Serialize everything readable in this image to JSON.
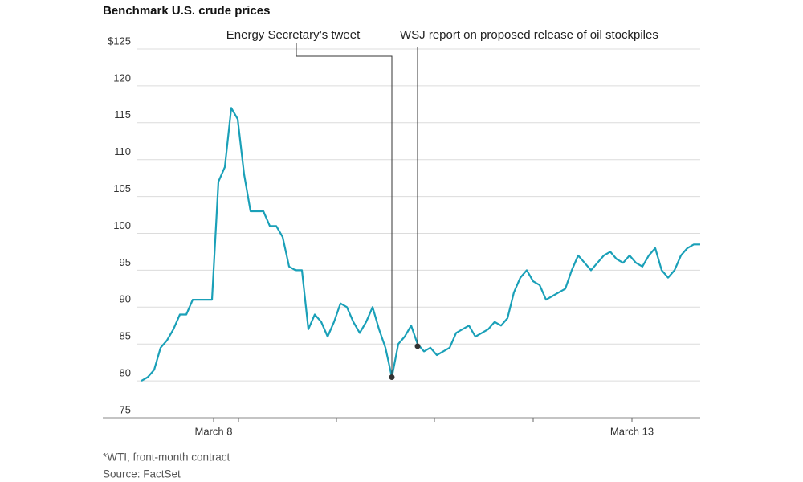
{
  "chart_data": {
    "type": "line",
    "title": "Benchmark U.S. crude prices",
    "x": [
      0,
      1,
      2,
      3,
      4,
      5,
      6,
      7,
      8,
      9,
      10,
      11,
      12,
      13,
      14,
      15,
      16,
      17,
      18,
      19,
      20,
      21,
      22,
      23,
      24,
      25,
      26,
      27,
      28,
      29,
      30,
      31,
      32,
      33,
      34,
      35,
      36,
      37,
      38,
      39,
      40,
      41,
      42,
      43,
      44,
      45,
      46,
      47,
      48,
      49,
      50,
      51,
      52,
      53,
      54,
      55,
      56,
      57,
      58,
      59,
      60,
      61,
      62,
      63,
      64,
      65,
      66,
      67,
      68,
      69,
      70,
      71,
      72,
      73,
      74,
      75,
      76,
      77,
      78,
      79,
      80,
      81,
      82,
      83,
      84,
      85,
      86,
      87
    ],
    "values": [
      80,
      80.5,
      81.5,
      84.5,
      85.5,
      87,
      89,
      89,
      91,
      91,
      91,
      91,
      107,
      109,
      117,
      115.5,
      108,
      103,
      103,
      103,
      101,
      101,
      99.5,
      95.5,
      95,
      95,
      87,
      89,
      88,
      86,
      88,
      90.5,
      90,
      88,
      86.5,
      88,
      90,
      87,
      84.5,
      80.5,
      85,
      86,
      87.5,
      85,
      84,
      84.5,
      83.5,
      84,
      84.5,
      86.5,
      87,
      87.5,
      86,
      86.5,
      87,
      88,
      87.5,
      88.5,
      92,
      94,
      95,
      93.5,
      93,
      91,
      91.5,
      92,
      92.5,
      95,
      97,
      96,
      95,
      96,
      97,
      97.5,
      96.5,
      96,
      97,
      96,
      95.5,
      97,
      98,
      95,
      94,
      95,
      97,
      98,
      98.5,
      98.5
    ],
    "color": "#1aa0b8",
    "xlim": [
      -6,
      87
    ],
    "xticks": [
      {
        "value": 11.25,
        "label": "March 8"
      },
      {
        "value": 76.375,
        "label": "March 13"
      }
    ],
    "xticks_minor": [
      15.125,
      30.375,
      45.625,
      61
    ],
    "ylim": [
      75,
      125
    ],
    "yticks": [
      {
        "value": 125,
        "label": "$125"
      },
      120,
      115,
      110,
      105,
      100,
      95,
      90,
      85,
      80,
      75
    ],
    "grid": true,
    "annotations": [
      {
        "text": "Energy Secretary’s tweet",
        "x": 39,
        "y": 80.5
      },
      {
        "text": "WSJ report on proposed release of oil stockpiles",
        "x": 43,
        "y": 84.7
      }
    ],
    "footnote": "*WTI, front-month contract",
    "source": "Source: FactSet"
  }
}
